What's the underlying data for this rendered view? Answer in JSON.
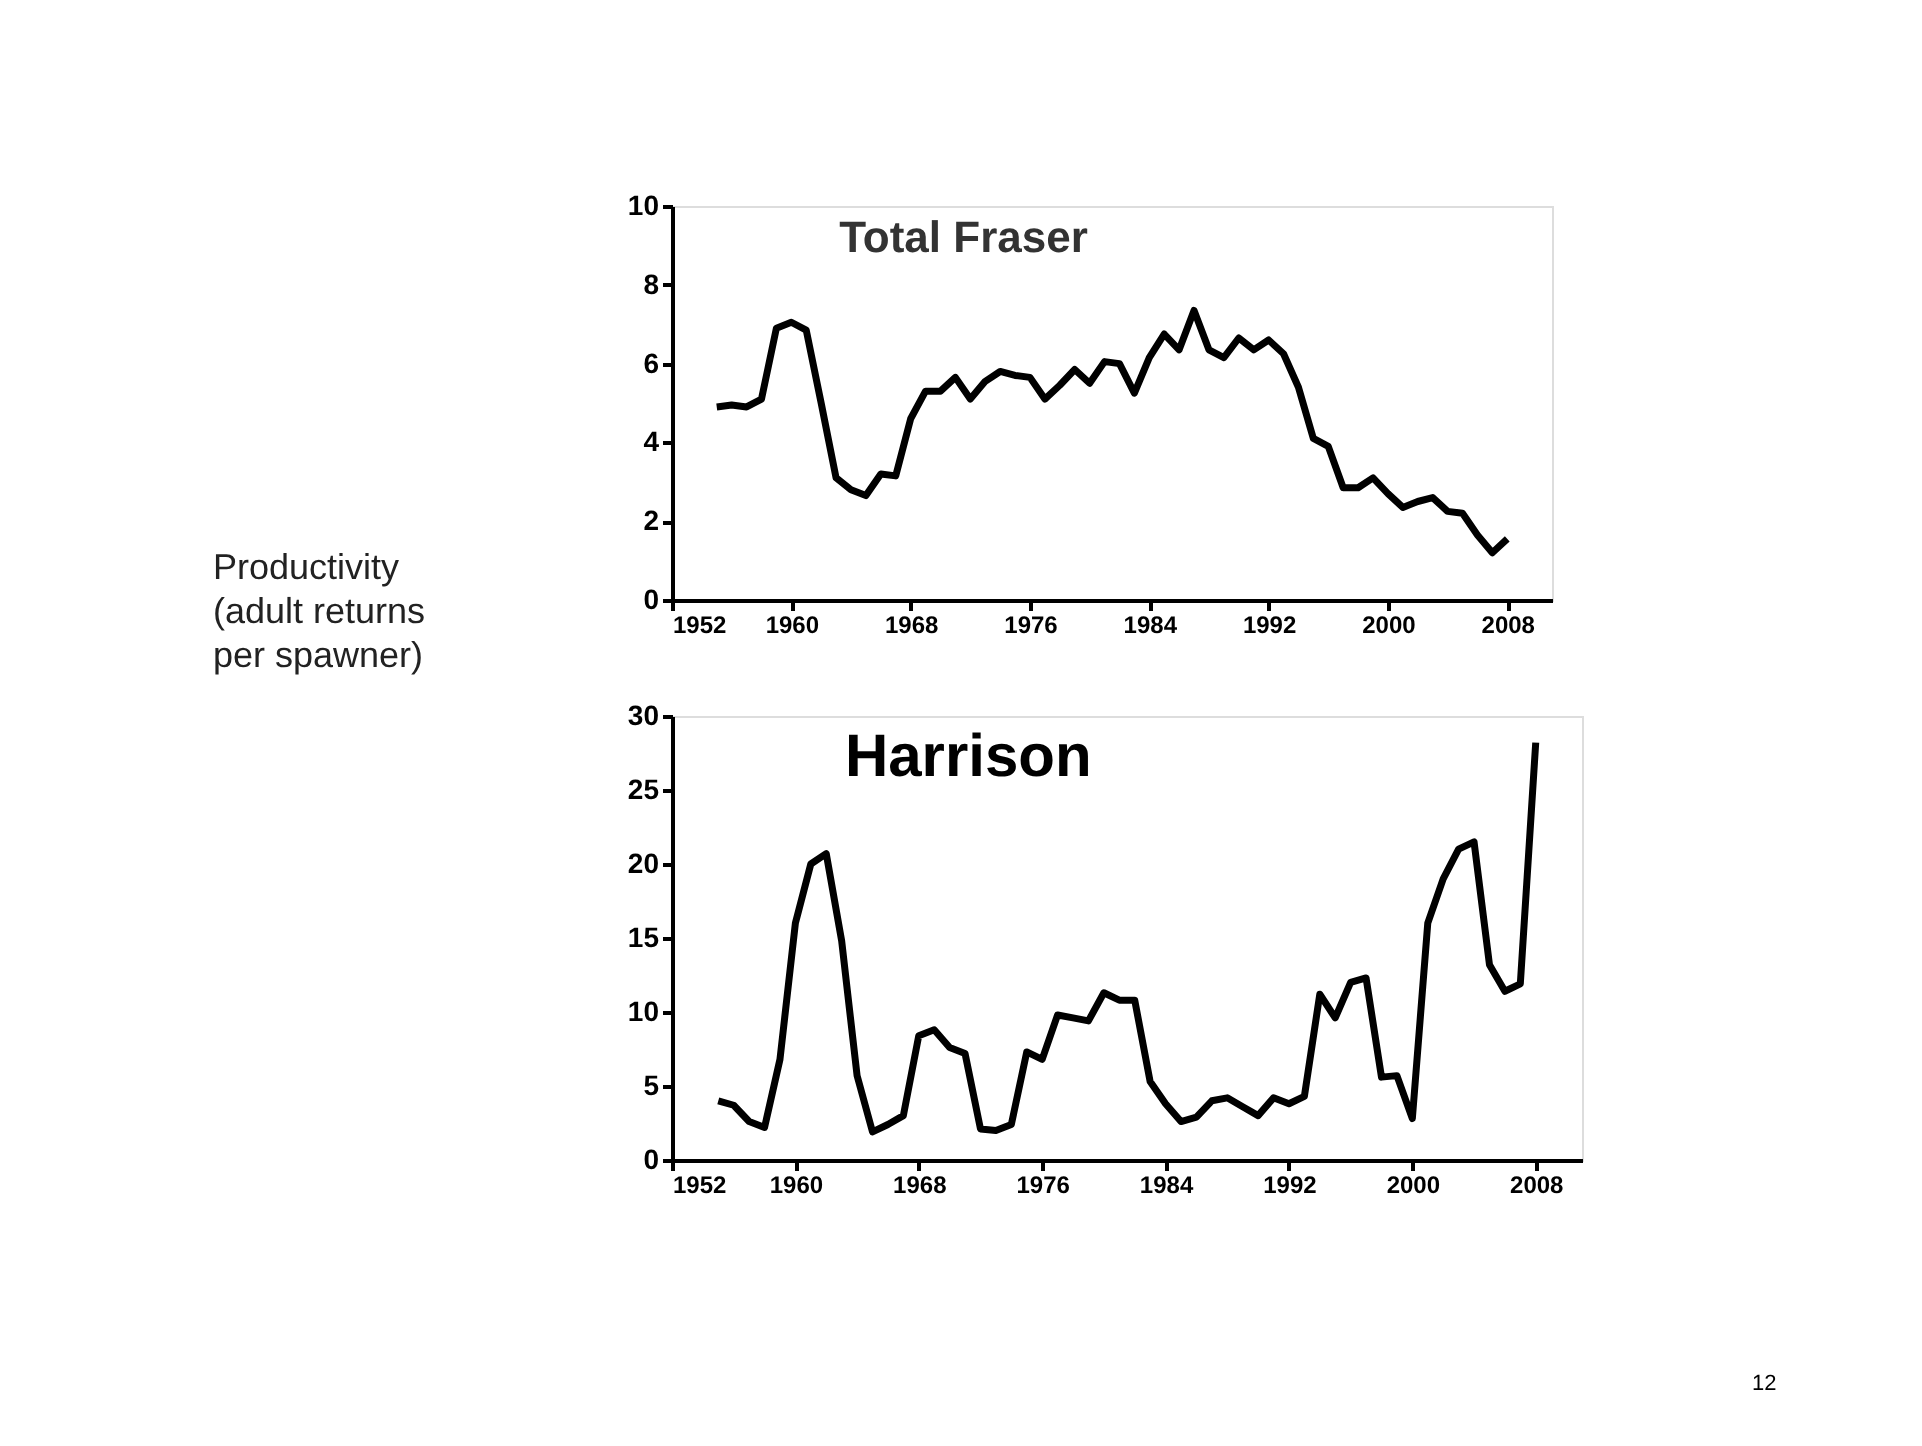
{
  "chart_data": [
    {
      "type": "line",
      "title": "Total Fraser",
      "ylabel": "Productivity\n(adult returns\nper spawner)",
      "x": [
        1955,
        1956,
        1957,
        1958,
        1959,
        1960,
        1961,
        1962,
        1963,
        1964,
        1965,
        1966,
        1967,
        1968,
        1969,
        1970,
        1971,
        1972,
        1973,
        1974,
        1975,
        1976,
        1977,
        1978,
        1979,
        1980,
        1981,
        1982,
        1983,
        1984,
        1985,
        1986,
        1987,
        1988,
        1989,
        1990,
        1991,
        1992,
        1993,
        1994,
        1995,
        1996,
        1997,
        1998,
        1999,
        2000,
        2001,
        2002,
        2003,
        2004,
        2005,
        2006,
        2007,
        2008
      ],
      "series": [
        {
          "color": "#000000",
          "values": [
            4.9,
            4.95,
            4.9,
            5.1,
            6.9,
            7.05,
            6.85,
            5.0,
            3.1,
            2.8,
            2.65,
            3.2,
            3.15,
            4.6,
            5.3,
            5.3,
            5.65,
            5.1,
            5.55,
            5.8,
            5.7,
            5.65,
            5.1,
            5.45,
            5.85,
            5.5,
            6.05,
            6.0,
            5.25,
            6.15,
            6.75,
            6.35,
            7.35,
            6.35,
            6.15,
            6.65,
            6.35,
            6.6,
            6.25,
            5.4,
            4.1,
            3.9,
            2.85,
            2.85,
            3.1,
            2.7,
            2.35,
            2.5,
            2.6,
            2.25,
            2.2,
            1.65,
            1.2,
            1.55
          ]
        }
      ],
      "xlim": [
        1952,
        2011
      ],
      "xticks": [
        1952,
        1960,
        1968,
        1976,
        1984,
        1992,
        2000,
        2008
      ],
      "ylim": [
        0,
        10
      ],
      "yticks": [
        0,
        2,
        4,
        6,
        8,
        10
      ],
      "grid": false,
      "legend": false,
      "line_style": "solid",
      "marker": "none"
    },
    {
      "type": "line",
      "title": "Harrison",
      "annotations": [
        "12"
      ],
      "x": [
        1955,
        1956,
        1957,
        1958,
        1959,
        1960,
        1961,
        1962,
        1963,
        1964,
        1965,
        1966,
        1967,
        1968,
        1969,
        1970,
        1971,
        1972,
        1973,
        1974,
        1975,
        1976,
        1977,
        1978,
        1979,
        1980,
        1981,
        1982,
        1983,
        1984,
        1985,
        1986,
        1987,
        1988,
        1989,
        1990,
        1991,
        1992,
        1993,
        1994,
        1995,
        1996,
        1997,
        1998,
        1999,
        2000,
        2001,
        2002,
        2003,
        2004,
        2005,
        2006,
        2007,
        2008
      ],
      "series": [
        {
          "color": "#000000",
          "values": [
            4.0,
            3.7,
            2.6,
            2.2,
            6.8,
            16,
            20,
            20.7,
            14.8,
            5.7,
            1.9,
            2.4,
            3.0,
            8.4,
            8.8,
            7.6,
            7.2,
            2.1,
            2.0,
            2.4,
            7.3,
            6.8,
            9.8,
            9.6,
            9.4,
            11.3,
            10.8,
            10.8,
            5.3,
            3.8,
            2.6,
            2.9,
            4.0,
            4.2,
            3.6,
            3.0,
            4.2,
            3.8,
            4.3,
            11.2,
            9.6,
            12.0,
            12.3,
            5.6,
            5.7,
            2.8,
            16,
            19,
            21,
            21.5,
            13.2,
            11.4,
            11.9,
            28.2
          ]
        }
      ],
      "xlim": [
        1952,
        2011
      ],
      "xticks": [
        1952,
        1960,
        1968,
        1976,
        1984,
        1992,
        2000,
        2008
      ],
      "ylim": [
        0,
        30
      ],
      "yticks": [
        0,
        5,
        10,
        15,
        20,
        25,
        30
      ],
      "grid": false,
      "legend": false,
      "line_style": "solid",
      "marker": "none"
    }
  ]
}
